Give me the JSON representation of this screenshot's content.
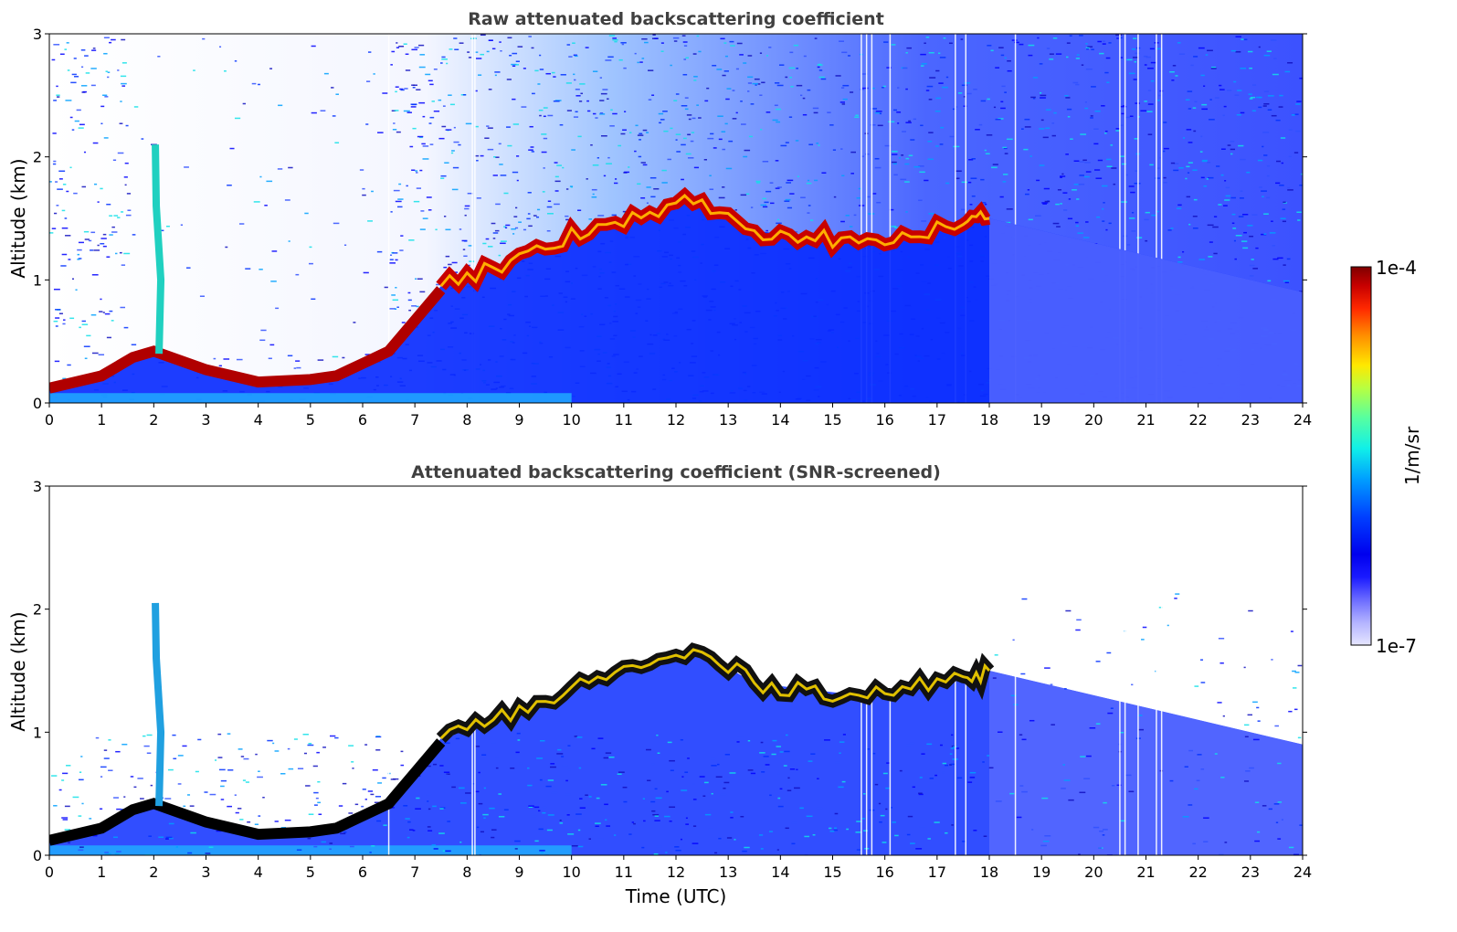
{
  "chart_data": [
    {
      "type": "heatmap",
      "title": "Raw attenuated backscattering coefficient",
      "xlabel": "",
      "ylabel": "Altitude (km)",
      "xlim": [
        0,
        24
      ],
      "ylim": [
        0,
        3
      ],
      "xticks": [
        "0",
        "1",
        "2",
        "3",
        "4",
        "5",
        "6",
        "7",
        "8",
        "9",
        "10",
        "11",
        "12",
        "13",
        "14",
        "15",
        "16",
        "17",
        "18",
        "19",
        "20",
        "21",
        "22",
        "23",
        "24"
      ],
      "yticks": [
        "0",
        "1",
        "2",
        "3"
      ],
      "colorscale": "jet, log",
      "features": {
        "surface_layer_top_km": [
          [
            0,
            0.15
          ],
          [
            1,
            0.25
          ],
          [
            1.6,
            0.4
          ],
          [
            2,
            0.45
          ],
          [
            3,
            0.3
          ],
          [
            4,
            0.2
          ],
          [
            5,
            0.22
          ],
          [
            5.5,
            0.25
          ],
          [
            6,
            0.35
          ],
          [
            6.5,
            0.45
          ],
          [
            7,
            0.7
          ],
          [
            7.5,
            0.95
          ],
          [
            8,
            1.0
          ],
          [
            8.5,
            1.1
          ],
          [
            9,
            1.2
          ],
          [
            10,
            1.3
          ]
        ],
        "cloud_layer_km": [
          [
            7.5,
            0.95
          ],
          [
            8.5,
            1.1
          ],
          [
            9.5,
            1.25
          ],
          [
            10.5,
            1.45
          ],
          [
            11.5,
            1.55
          ],
          [
            12.5,
            1.65
          ],
          [
            13.5,
            1.4
          ],
          [
            14.5,
            1.35
          ],
          [
            15.5,
            1.3
          ],
          [
            16.5,
            1.35
          ],
          [
            17.5,
            1.45
          ],
          [
            18,
            1.5
          ]
        ],
        "plume_time_utc": 2.1,
        "plume_top_km": 2.1
      }
    },
    {
      "type": "heatmap",
      "title": "Attenuated backscattering coefficient (SNR-screened)",
      "xlabel": "Time (UTC)",
      "ylabel": "Altitude (km)",
      "xlim": [
        0,
        24
      ],
      "ylim": [
        0,
        3
      ],
      "xticks": [
        "0",
        "1",
        "2",
        "3",
        "4",
        "5",
        "6",
        "7",
        "8",
        "9",
        "10",
        "11",
        "12",
        "13",
        "14",
        "15",
        "16",
        "17",
        "18",
        "19",
        "20",
        "21",
        "22",
        "23",
        "24"
      ],
      "yticks": [
        "0",
        "1",
        "2",
        "3"
      ],
      "colorscale": "jet, log",
      "features": {
        "surface_layer_top_km": [
          [
            0,
            0.15
          ],
          [
            1,
            0.25
          ],
          [
            1.6,
            0.4
          ],
          [
            2,
            0.45
          ],
          [
            3,
            0.3
          ],
          [
            4,
            0.2
          ],
          [
            5,
            0.22
          ],
          [
            5.5,
            0.25
          ],
          [
            6,
            0.35
          ],
          [
            6.5,
            0.45
          ],
          [
            7,
            0.7
          ],
          [
            7.5,
            0.95
          ],
          [
            8,
            1.0
          ],
          [
            8.5,
            1.1
          ],
          [
            9,
            1.2
          ],
          [
            10,
            1.3
          ]
        ],
        "cloud_layer_km": [
          [
            7.5,
            0.95
          ],
          [
            8.5,
            1.1
          ],
          [
            9.5,
            1.25
          ],
          [
            10.5,
            1.45
          ],
          [
            11.5,
            1.55
          ],
          [
            12.5,
            1.65
          ],
          [
            13.5,
            1.4
          ],
          [
            14.5,
            1.35
          ],
          [
            15.5,
            1.3
          ],
          [
            16.5,
            1.35
          ],
          [
            17.5,
            1.45
          ],
          [
            18,
            1.5
          ]
        ],
        "plume_time_utc": 2.1,
        "plume_top_km": 2.05
      }
    }
  ],
  "colorbar": {
    "label": "1/m/sr",
    "max_label": "1e-4",
    "min_label": "1e-7",
    "colors": [
      "#7f0000",
      "#b20000",
      "#e50000",
      "#ff3000",
      "#ff7a00",
      "#ffc400",
      "#e8ff0f",
      "#9fff58",
      "#56ffa1",
      "#10f0e8",
      "#00b8ff",
      "#0070ff",
      "#0028ff",
      "#0000ee",
      "#1919ff",
      "#4c4cff",
      "#8080ff",
      "#b3b3ff",
      "#e6e6ff"
    ]
  }
}
